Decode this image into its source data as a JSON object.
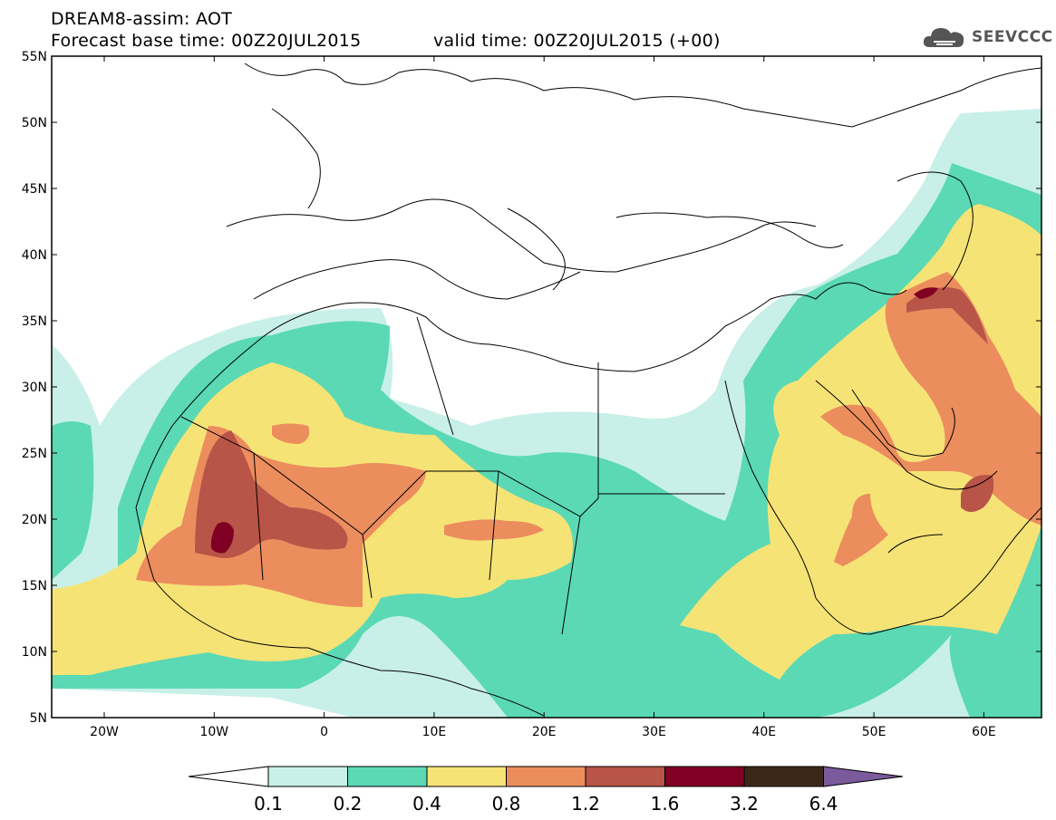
{
  "header": {
    "line1": "DREAM8-assim: AOT",
    "line2": "Forecast base time: 00Z20JUL2015",
    "line3": "valid time: 00Z20JUL2015 (+00)"
  },
  "logo": {
    "text": "SEEVCCC",
    "icon": "cloud-icon"
  },
  "axes": {
    "lat_labels": [
      "55N",
      "50N",
      "45N",
      "40N",
      "35N",
      "30N",
      "25N",
      "20N",
      "15N",
      "10N",
      "5N"
    ],
    "lon_labels": [
      "20W",
      "10W",
      "0",
      "10E",
      "20E",
      "30E",
      "40E",
      "50E",
      "60E"
    ]
  },
  "colorbar": {
    "labels": [
      "0.1",
      "0.2",
      "0.4",
      "0.8",
      "1.2",
      "1.6",
      "3.2",
      "6.4"
    ],
    "colors": [
      "#ffffff",
      "#c8f0e8",
      "#5ad9b4",
      "#f6e376",
      "#ec8d5e",
      "#b95448",
      "#800024",
      "#3d2818",
      "#7b5a9c"
    ]
  },
  "map_colors": {
    "c01": "#c8f0e8",
    "c02": "#5ad9b4",
    "c04": "#f6e376",
    "c08": "#ec8d5e",
    "c12": "#b95448",
    "c16": "#800024"
  }
}
